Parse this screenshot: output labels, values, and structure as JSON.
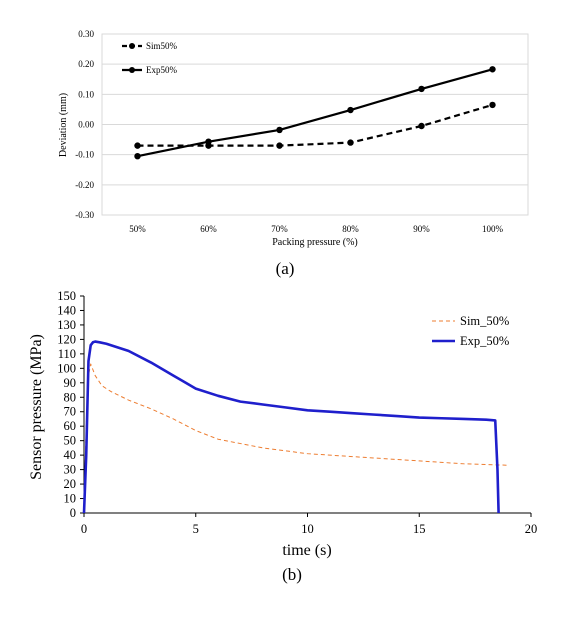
{
  "chart_data": [
    {
      "type": "line",
      "categories": [
        "50%",
        "60%",
        "70%",
        "80%",
        "90%",
        "100%"
      ],
      "series": [
        {
          "name": "Sim50%",
          "values": [
            -0.07,
            -0.07,
            -0.07,
            -0.06,
            -0.005,
            0.065
          ],
          "style": "dashed",
          "color": "#000000"
        },
        {
          "name": "Exp50%",
          "values": [
            -0.105,
            -0.057,
            -0.018,
            0.048,
            0.118,
            0.183
          ],
          "style": "solid",
          "color": "#000000"
        }
      ],
      "xlabel": "Packing pressure (%)",
      "ylabel": "Deviation (mm)",
      "ylim": [
        -0.3,
        0.3
      ],
      "yticks": [
        -0.3,
        -0.2,
        -0.1,
        0.0,
        0.1,
        0.2,
        0.3
      ],
      "ytick_labels": [
        "-0.30",
        "-0.20",
        "-0.10",
        "0.00",
        "0.10",
        "0.20",
        "0.30"
      ],
      "grid": "horizontal",
      "legend_position": "top-left",
      "caption": "(a)"
    },
    {
      "type": "line",
      "series": [
        {
          "name": "Sim_50%",
          "style": "dashed",
          "color": "#ed7d31",
          "x": [
            0,
            0.1,
            0.2,
            0.3,
            0.5,
            0.8,
            1.2,
            2,
            3,
            4,
            5,
            6,
            7,
            8,
            9,
            10,
            11,
            12,
            13,
            14,
            15,
            16,
            17,
            18,
            19
          ],
          "y": [
            0,
            60,
            95,
            103,
            95,
            88,
            84,
            78,
            72,
            65,
            57,
            51,
            48,
            45,
            43,
            41,
            40,
            39,
            38,
            37,
            36,
            35,
            34,
            33.5,
            33
          ]
        },
        {
          "name": "Exp_50%",
          "style": "solid",
          "color": "#1f1fcc",
          "x": [
            0,
            0.1,
            0.2,
            0.3,
            0.4,
            0.5,
            0.7,
            1,
            2,
            3,
            4,
            5,
            6,
            7,
            8,
            9,
            10,
            11,
            12,
            13,
            14,
            15,
            16,
            17,
            18,
            18.4,
            18.5,
            18.55
          ],
          "y": [
            0,
            40,
            105,
            116,
            118,
            118.5,
            118,
            117,
            112,
            104,
            95,
            86,
            81,
            77,
            75,
            73,
            71,
            70,
            69,
            68,
            67,
            66,
            65.5,
            65,
            64.5,
            64,
            30,
            0
          ]
        }
      ],
      "xlabel": "time (s)",
      "ylabel": "Sensor pressure (MPa)",
      "xlim": [
        0,
        20
      ],
      "ylim": [
        0,
        150
      ],
      "xticks": [
        0,
        5,
        10,
        15,
        20
      ],
      "yticks": [
        0,
        10,
        20,
        30,
        40,
        50,
        60,
        70,
        80,
        90,
        100,
        110,
        120,
        130,
        140,
        150
      ],
      "grid": "off",
      "legend_position": "top-right",
      "caption": "(b)"
    }
  ]
}
